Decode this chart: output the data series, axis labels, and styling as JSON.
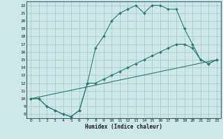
{
  "xlabel": "Humidex (Indice chaleur)",
  "bg_color": "#cce8e8",
  "grid_color": "#aacccc",
  "line_color": "#2e7b6e",
  "xlim": [
    -0.5,
    23.5
  ],
  "ylim": [
    7.5,
    22.5
  ],
  "line1_x": [
    0,
    1,
    2,
    3,
    4,
    5,
    6,
    7,
    8,
    9,
    10,
    11,
    12,
    13,
    14,
    15,
    16,
    17,
    18,
    19,
    20,
    21,
    22,
    23
  ],
  "line1_y": [
    10,
    10,
    9,
    8.5,
    8,
    7.7,
    8.5,
    12,
    16.5,
    18,
    20,
    21,
    21.5,
    22,
    21,
    22,
    22,
    21.5,
    21.5,
    19,
    17,
    15,
    14.5,
    15
  ],
  "line2_x": [
    0,
    1,
    2,
    3,
    4,
    5,
    6,
    7,
    8,
    9,
    10,
    11,
    12,
    13,
    14,
    15,
    16,
    17,
    18,
    19,
    20,
    21,
    22,
    23
  ],
  "line2_y": [
    10,
    10,
    9,
    8.5,
    8,
    7.7,
    8.5,
    12,
    12,
    12.5,
    13,
    13.5,
    14,
    14.5,
    15,
    15.5,
    16,
    16.5,
    17,
    17,
    16.5,
    15,
    14.5,
    15
  ],
  "line3_x": [
    0,
    23
  ],
  "line3_y": [
    10,
    15
  ],
  "yticks": [
    8,
    9,
    10,
    11,
    12,
    13,
    14,
    15,
    16,
    17,
    18,
    19,
    20,
    21,
    22
  ],
  "xticks": [
    0,
    1,
    2,
    3,
    4,
    5,
    6,
    7,
    8,
    9,
    10,
    11,
    12,
    13,
    14,
    15,
    16,
    17,
    18,
    19,
    20,
    21,
    22,
    23
  ]
}
